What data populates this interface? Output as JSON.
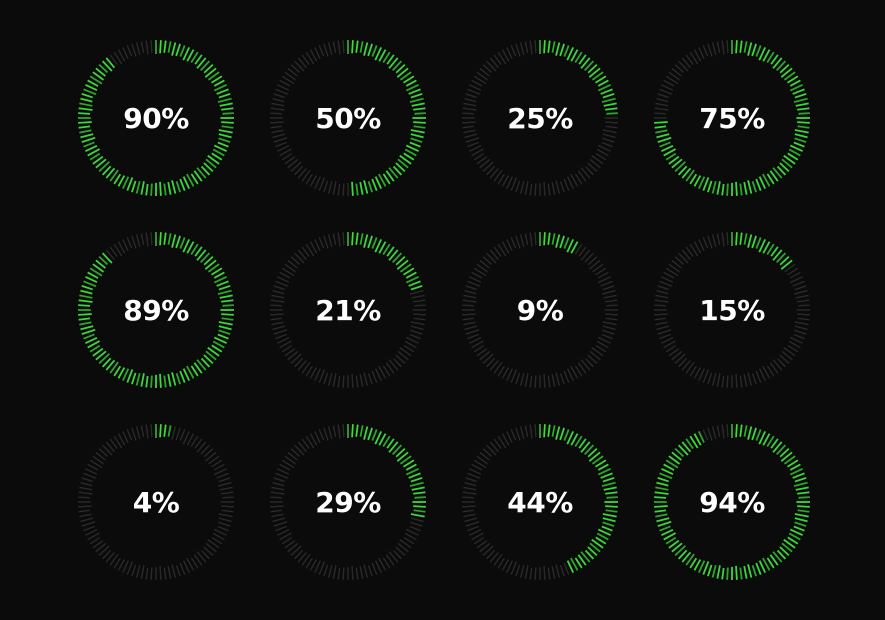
{
  "colors": {
    "background": "#0b0b0b",
    "track": "#2a2a2a",
    "progress": "#3dd63d",
    "progress_alt": "#2fa32f",
    "text": "#ffffff"
  },
  "gauges": [
    {
      "value": 90,
      "label": "90%"
    },
    {
      "value": 50,
      "label": "50%"
    },
    {
      "value": 25,
      "label": "25%"
    },
    {
      "value": 75,
      "label": "75%"
    },
    {
      "value": 89,
      "label": "89%"
    },
    {
      "value": 21,
      "label": "21%"
    },
    {
      "value": 9,
      "label": "9%"
    },
    {
      "value": 15,
      "label": "15%"
    },
    {
      "value": 4,
      "label": "4%"
    },
    {
      "value": 29,
      "label": "29%"
    },
    {
      "value": 44,
      "label": "44%"
    },
    {
      "value": 94,
      "label": "94%"
    }
  ]
}
